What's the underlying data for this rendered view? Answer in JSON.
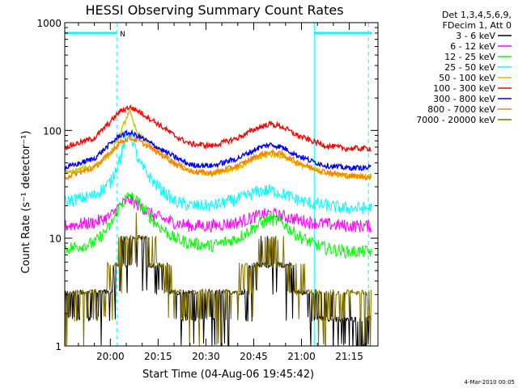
{
  "chart_data": {
    "type": "line",
    "title": "HESSI Observing Summary Count Rates",
    "xlabel": "Start Time (04-Aug-06 19:45:42)",
    "ylabel": "Count Rate (s⁻¹ detector⁻¹)",
    "yscale": "log",
    "ylim": [
      1,
      1000
    ],
    "xlim": [
      "19:45:42",
      "21:24:00"
    ],
    "x_ticks": [
      "20:00",
      "20:15",
      "20:30",
      "20:45",
      "21:00",
      "21:15"
    ],
    "y_ticks": [
      "1",
      "10",
      "100",
      "1000"
    ],
    "grid": false,
    "legend_header": [
      "Det 1,3,4,5,6,9,",
      "FDecim 1, Att 0"
    ],
    "legend_position": "right",
    "footer": "4-Mar-2010 00:05",
    "series": [
      {
        "name": "3 - 6 keV",
        "color": "#000000",
        "style": "noisy-low",
        "x": [
          "19:46",
          "19:55",
          "20:00",
          "20:03",
          "20:06",
          "20:09",
          "20:14",
          "20:20",
          "20:25",
          "20:32",
          "20:40",
          "20:46",
          "20:50",
          "20:54",
          "20:58",
          "21:03",
          "21:08",
          "21:14",
          "21:20"
        ],
        "values": [
          2.5,
          2.5,
          3.5,
          6,
          9,
          10,
          6,
          3,
          2.5,
          2.5,
          3,
          5.5,
          7,
          6,
          3.5,
          2.5,
          2,
          2,
          1.5
        ]
      },
      {
        "name": "6 - 12 keV",
        "color": "#ff00ff",
        "style": "noisy",
        "x": [
          "19:46",
          "19:55",
          "20:00",
          "20:03",
          "20:06",
          "20:09",
          "20:14",
          "20:20",
          "20:25",
          "20:32",
          "20:40",
          "20:46",
          "20:50",
          "20:54",
          "20:58",
          "21:03",
          "21:08",
          "21:14",
          "21:20"
        ],
        "values": [
          13,
          14,
          16,
          20,
          23,
          20,
          16,
          14,
          13,
          13,
          14,
          16,
          17,
          16,
          15,
          14,
          13.5,
          13,
          13
        ]
      },
      {
        "name": "12 - 25 keV",
        "color": "#00ff00",
        "style": "noisy",
        "x": [
          "19:46",
          "19:55",
          "20:00",
          "20:03",
          "20:06",
          "20:09",
          "20:14",
          "20:20",
          "20:25",
          "20:32",
          "20:40",
          "20:46",
          "20:50",
          "20:54",
          "20:58",
          "21:03",
          "21:08",
          "21:14",
          "21:20"
        ],
        "values": [
          8,
          9,
          13,
          20,
          25,
          21,
          14,
          10,
          9,
          8.5,
          10,
          13,
          15,
          14,
          11,
          9,
          8,
          7.5,
          7.5
        ]
      },
      {
        "name": "25 - 50 keV",
        "color": "#00ffff",
        "style": "noisy",
        "x": [
          "19:46",
          "19:55",
          "20:00",
          "20:03",
          "20:05",
          "20:06",
          "20:07",
          "20:09",
          "20:14",
          "20:20",
          "20:25",
          "20:32",
          "20:40",
          "20:46",
          "20:50",
          "20:54",
          "20:58",
          "21:03",
          "21:08",
          "21:14",
          "21:20"
        ],
        "values": [
          22,
          25,
          33,
          55,
          85,
          100,
          80,
          50,
          32,
          22,
          20,
          20,
          23,
          27,
          28,
          26,
          23,
          21,
          20,
          19,
          19
        ]
      },
      {
        "name": "50 - 100 keV",
        "color": "#c8c800",
        "style": "smooth",
        "x": [
          "19:46",
          "19:55",
          "20:00",
          "20:03",
          "20:05",
          "20:06",
          "20:07",
          "20:09",
          "20:14",
          "20:20",
          "20:25",
          "20:32",
          "20:40",
          "20:46",
          "20:50",
          "20:54",
          "20:58",
          "21:03",
          "21:08",
          "21:14",
          "21:20"
        ],
        "values": [
          40,
          47,
          60,
          90,
          130,
          155,
          120,
          90,
          70,
          50,
          42,
          40,
          45,
          55,
          60,
          58,
          50,
          44,
          40,
          38,
          38
        ]
      },
      {
        "name": "100 - 300 keV",
        "color": "#ff0000",
        "style": "smooth",
        "x": [
          "19:46",
          "19:55",
          "20:00",
          "20:03",
          "20:06",
          "20:09",
          "20:14",
          "20:20",
          "20:25",
          "20:32",
          "20:40",
          "20:46",
          "20:50",
          "20:54",
          "20:58",
          "21:03",
          "21:08",
          "21:14",
          "21:20"
        ],
        "values": [
          70,
          85,
          120,
          150,
          165,
          150,
          120,
          90,
          75,
          72,
          85,
          105,
          115,
          108,
          92,
          80,
          72,
          68,
          68
        ]
      },
      {
        "name": "300 - 800 keV",
        "color": "#0000ff",
        "style": "smooth",
        "x": [
          "19:46",
          "19:55",
          "20:00",
          "20:03",
          "20:06",
          "20:09",
          "20:14",
          "20:20",
          "20:25",
          "20:32",
          "20:40",
          "20:46",
          "20:50",
          "20:54",
          "20:58",
          "21:03",
          "21:08",
          "21:14",
          "21:20"
        ],
        "values": [
          45,
          55,
          75,
          90,
          95,
          88,
          72,
          57,
          48,
          47,
          55,
          68,
          74,
          70,
          60,
          52,
          47,
          45,
          45
        ]
      },
      {
        "name": "800 - 7000 keV",
        "color": "#ff8000",
        "style": "smooth",
        "x": [
          "19:46",
          "19:55",
          "20:00",
          "20:03",
          "20:06",
          "20:09",
          "20:14",
          "20:20",
          "20:25",
          "20:32",
          "20:40",
          "20:46",
          "20:50",
          "20:54",
          "20:58",
          "21:03",
          "21:08",
          "21:14",
          "21:20"
        ],
        "values": [
          37,
          45,
          62,
          78,
          85,
          80,
          65,
          50,
          42,
          40,
          47,
          58,
          63,
          60,
          52,
          45,
          41,
          38,
          37
        ]
      },
      {
        "name": "7000 - 20000 keV",
        "color": "#807000",
        "style": "noisy-low",
        "x": [
          "19:46",
          "19:55",
          "20:00",
          "20:03",
          "20:06",
          "20:09",
          "20:14",
          "20:20",
          "20:25",
          "20:32",
          "20:40",
          "20:46",
          "20:50",
          "20:54",
          "20:58",
          "21:03",
          "21:08",
          "21:14",
          "21:20"
        ],
        "values": [
          2.8,
          3,
          4,
          7,
          10,
          11,
          7,
          3.5,
          2.8,
          2.8,
          3.2,
          6,
          7.5,
          6.5,
          4,
          3,
          2.8,
          2.8,
          2.8
        ]
      }
    ],
    "markers": {
      "vertical_lines": [
        "20:02",
        "21:04",
        "21:21"
      ],
      "vertical_styles": [
        "dashed",
        "solid",
        "dashed"
      ],
      "top_bars": [
        [
          "19:45:42",
          "20:02"
        ],
        [
          "21:04",
          "21:22"
        ]
      ],
      "top_bar_value": 800,
      "marker_label": "N",
      "marker_label_time": "20:03",
      "color": "#00ffff"
    }
  }
}
